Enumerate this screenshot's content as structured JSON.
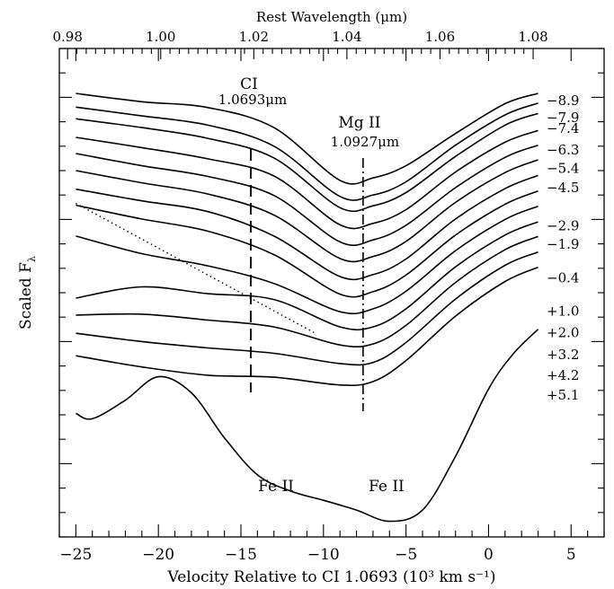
{
  "chart_data": {
    "type": "line",
    "title": "",
    "xlabel": "Velocity Relative to CI 1.0693 (10³  km s⁻¹)",
    "ylabel": "Scaled F",
    "ylabel_subscript": "λ",
    "top_axis_label": "Rest Wavelength (μm)",
    "xlim": [
      -26,
      7
    ],
    "x_ticks": [
      -25,
      -20,
      -15,
      -10,
      -5,
      0,
      5
    ],
    "x_tick_labels": [
      "−25",
      "−20",
      "−15",
      "−10",
      "−5",
      "0",
      "5"
    ],
    "top_ticks": [
      0.98,
      1.0,
      1.02,
      1.04,
      1.06,
      1.08
    ],
    "top_tick_labels": [
      "0.98",
      "1.00",
      "1.02",
      "1.04",
      "1.06",
      "1.08"
    ],
    "top_axis_map": {
      "ref_wavelength": 0.98,
      "ref_velocity": -25.5,
      "velocity_per_micron": 282
    },
    "ylim": [
      0,
      1
    ],
    "grid": false,
    "annotations": {
      "ci_label": "CI",
      "ci_wavelength": "1.0693μm",
      "ci_velocity": -14.4,
      "mg_label": "Mg II",
      "mg_wavelength": "1.0927μm",
      "mg_velocity": -7.6,
      "fe_label_1": "Fe II",
      "fe_label_2": "Fe II"
    },
    "continuum_line": {
      "x": [
        -25,
        -10.5
      ],
      "y": [
        0.683,
        0.417
      ]
    },
    "epoch_label_x": 3.3,
    "series": [
      {
        "name": "−8.9",
        "label_y": 0.893,
        "x": [
          -25,
          -21,
          -17,
          -13,
          -9,
          -7,
          -5,
          -2,
          1,
          3
        ],
        "y": [
          0.908,
          0.891,
          0.879,
          0.838,
          0.73,
          0.735,
          0.76,
          0.826,
          0.887,
          0.908
        ]
      },
      {
        "name": "−7.9",
        "label_y": 0.858,
        "x": [
          -25,
          -21,
          -17,
          -13,
          -9,
          -7,
          -5,
          -2,
          1,
          3
        ],
        "y": [
          0.88,
          0.862,
          0.843,
          0.8,
          0.697,
          0.7,
          0.727,
          0.802,
          0.864,
          0.888
        ]
      },
      {
        "name": "−7.4",
        "label_y": 0.836,
        "x": [
          -25,
          -21,
          -17,
          -13,
          -9,
          -7,
          -5,
          -2,
          1,
          3
        ],
        "y": [
          0.856,
          0.838,
          0.816,
          0.776,
          0.674,
          0.678,
          0.705,
          0.779,
          0.843,
          0.867
        ]
      },
      {
        "name": "−6.3",
        "label_y": 0.792,
        "x": [
          -25,
          -21,
          -17,
          -13,
          -9,
          -7,
          -5,
          -2,
          1,
          3
        ],
        "y": [
          0.818,
          0.797,
          0.774,
          0.739,
          0.639,
          0.642,
          0.67,
          0.747,
          0.808,
          0.832
        ]
      },
      {
        "name": "−5.4",
        "label_y": 0.755,
        "x": [
          -25,
          -21,
          -17,
          -13,
          -9,
          -7,
          -5,
          -2,
          1,
          3
        ],
        "y": [
          0.785,
          0.76,
          0.738,
          0.699,
          0.604,
          0.608,
          0.638,
          0.715,
          0.777,
          0.802
        ]
      },
      {
        "name": "−4.5",
        "label_y": 0.715,
        "x": [
          -25,
          -21,
          -17,
          -13,
          -9,
          -7,
          -5,
          -2,
          1,
          3
        ],
        "y": [
          0.75,
          0.725,
          0.702,
          0.659,
          0.57,
          0.574,
          0.605,
          0.685,
          0.746,
          0.772
        ]
      },
      {
        "name": "−2.9",
        "label_y": 0.637,
        "x": [
          -25,
          -21,
          -17,
          -13,
          -9,
          -7,
          -5,
          -2,
          1,
          3
        ],
        "y": [
          0.712,
          0.688,
          0.666,
          0.616,
          0.533,
          0.537,
          0.569,
          0.651,
          0.713,
          0.74
        ]
      },
      {
        "name": "−1.9",
        "label_y": 0.599,
        "x": [
          -25,
          -21,
          -17,
          -13,
          -9,
          -7,
          -5,
          -2,
          1,
          3
        ],
        "y": [
          0.679,
          0.651,
          0.626,
          0.578,
          0.497,
          0.502,
          0.536,
          0.618,
          0.681,
          0.708
        ]
      },
      {
        "name": "−0.4",
        "label_y": 0.53,
        "x": [
          -25,
          -21,
          -17,
          -13,
          -9,
          -7,
          -5,
          -2,
          1,
          3
        ],
        "y": [
          0.616,
          0.58,
          0.555,
          0.519,
          0.461,
          0.467,
          0.503,
          0.586,
          0.65,
          0.677
        ]
      },
      {
        "name": "+1.0",
        "label_y": 0.462,
        "x": [
          -25,
          -21,
          -17,
          -13,
          -9,
          -7,
          -5,
          -2,
          1,
          3
        ],
        "y": [
          0.489,
          0.512,
          0.498,
          0.486,
          0.43,
          0.43,
          0.467,
          0.553,
          0.618,
          0.645
        ]
      },
      {
        "name": "+2.0",
        "label_y": 0.418,
        "x": [
          -25,
          -21,
          -17,
          -13,
          -9,
          -7,
          -5,
          -2,
          1,
          3
        ],
        "y": [
          0.454,
          0.456,
          0.444,
          0.43,
          0.393,
          0.395,
          0.433,
          0.521,
          0.588,
          0.615
        ]
      },
      {
        "name": "+3.2",
        "label_y": 0.373,
        "x": [
          -25,
          -21,
          -17,
          -13,
          -9,
          -7,
          -5,
          -2,
          1,
          3
        ],
        "y": [
          0.417,
          0.4,
          0.387,
          0.376,
          0.355,
          0.357,
          0.398,
          0.487,
          0.556,
          0.583
        ]
      },
      {
        "name": "+4.2",
        "label_y": 0.331,
        "x": [
          -25,
          -21,
          -17,
          -13,
          -9,
          -7,
          -5,
          -2,
          1,
          3
        ],
        "y": [
          0.371,
          0.348,
          0.331,
          0.327,
          0.311,
          0.318,
          0.361,
          0.452,
          0.523,
          0.552
        ]
      },
      {
        "name": "+5.1",
        "label_y": 0.29,
        "x": [
          -25,
          -24,
          -22,
          -20,
          -18,
          -16,
          -14,
          -12,
          -10,
          -8,
          -6,
          -4,
          -2,
          0,
          1.5,
          3
        ],
        "y": [
          0.253,
          0.242,
          0.28,
          0.328,
          0.295,
          0.203,
          0.127,
          0.094,
          0.075,
          0.055,
          0.032,
          0.055,
          0.165,
          0.303,
          0.375,
          0.425
        ]
      }
    ]
  }
}
